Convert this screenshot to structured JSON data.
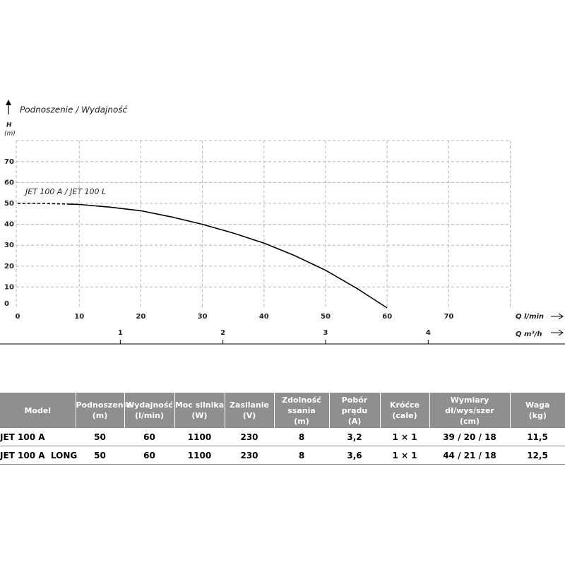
{
  "chart_data": {
    "type": "line",
    "title": "Podnoszenie / Wydajność",
    "y_label": "H",
    "y_unit": "(m)",
    "x_label": "Q l/min",
    "x2_label": "Q m³/h",
    "annotation": "JET 100 A / JET 100 L",
    "xlim": [
      0,
      80
    ],
    "xticks": [
      0,
      10,
      20,
      30,
      40,
      50,
      60,
      70
    ],
    "ylim": [
      0,
      80
    ],
    "yticks": [
      0,
      10,
      20,
      30,
      40,
      50,
      60,
      70
    ],
    "x2lim": [
      0,
      4.8
    ],
    "x2ticks": [
      1,
      2,
      3,
      4
    ],
    "grid": true,
    "series": [
      {
        "color": "#000000",
        "dashed": true,
        "x": [
          0,
          4,
          8
        ],
        "values": [
          50,
          50,
          49.7
        ]
      },
      {
        "color": "#000000",
        "dashed": false,
        "x": [
          8,
          10,
          15,
          20,
          25,
          30,
          35,
          40,
          45,
          50,
          55,
          60
        ],
        "values": [
          49.7,
          49.5,
          48.2,
          46.5,
          43.5,
          40,
          35.8,
          31,
          25,
          18,
          9.5,
          0
        ]
      }
    ]
  },
  "table": {
    "header": [
      [
        "Model"
      ],
      [
        "Podnoszenie",
        "(m)"
      ],
      [
        "Wydajność",
        "(l/min)"
      ],
      [
        "Moc silnika",
        "(W)"
      ],
      [
        "Zasilanie",
        "(V)"
      ],
      [
        "Zdolność ssania",
        "(m)"
      ],
      [
        "Pobór prądu",
        "(A)"
      ],
      [
        "Króćce",
        "(cale)"
      ],
      [
        "Wymiary dł/wys/szer",
        "(cm)"
      ],
      [
        "Waga",
        "(kg)"
      ]
    ],
    "rows": [
      [
        "JET 100 A",
        "50",
        "60",
        "1100",
        "230",
        "8",
        "3,2",
        "1 × 1",
        "39 / 20 / 18",
        "11,5"
      ],
      [
        "JET 100 A  LONG",
        "50",
        "60",
        "1100",
        "230",
        "8",
        "3,6",
        "1 × 1",
        "44 / 21 / 18",
        "12,5"
      ]
    ]
  }
}
